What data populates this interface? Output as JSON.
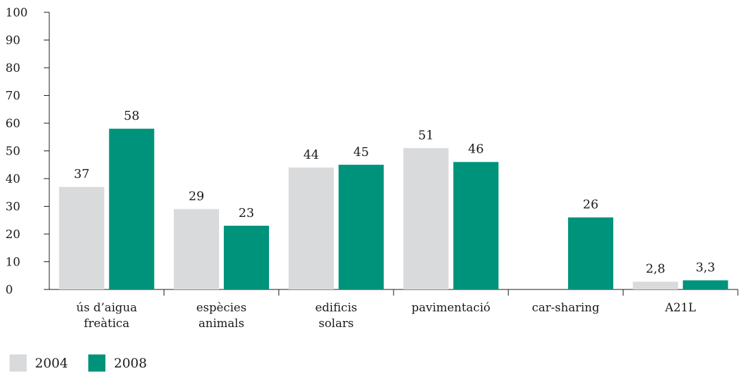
{
  "chart_data": {
    "type": "bar",
    "title": "",
    "xlabel": "",
    "ylabel": "",
    "ylim": [
      0,
      100
    ],
    "yticks": [
      0,
      10,
      20,
      30,
      40,
      50,
      60,
      70,
      80,
      90,
      100
    ],
    "categories": [
      [
        "ús d’aigua",
        "freàtica"
      ],
      [
        "espècies",
        "animals"
      ],
      [
        "edificis",
        "solars"
      ],
      [
        "pavimentació"
      ],
      [
        "car-sharing"
      ],
      [
        "A21L"
      ]
    ],
    "series": [
      {
        "name": "2004",
        "color": "#d9dadb",
        "values": [
          37,
          29,
          44,
          51,
          null,
          2.8
        ],
        "labels": [
          "37",
          "29",
          "44",
          "51",
          "",
          "2,8"
        ]
      },
      {
        "name": "2008",
        "color": "#00937b",
        "values": [
          58,
          23,
          45,
          46,
          26,
          3.3
        ],
        "labels": [
          "58",
          "23",
          "45",
          "46",
          "26",
          "3,3"
        ]
      }
    ],
    "legend_position": "bottom-left",
    "grid": false
  }
}
